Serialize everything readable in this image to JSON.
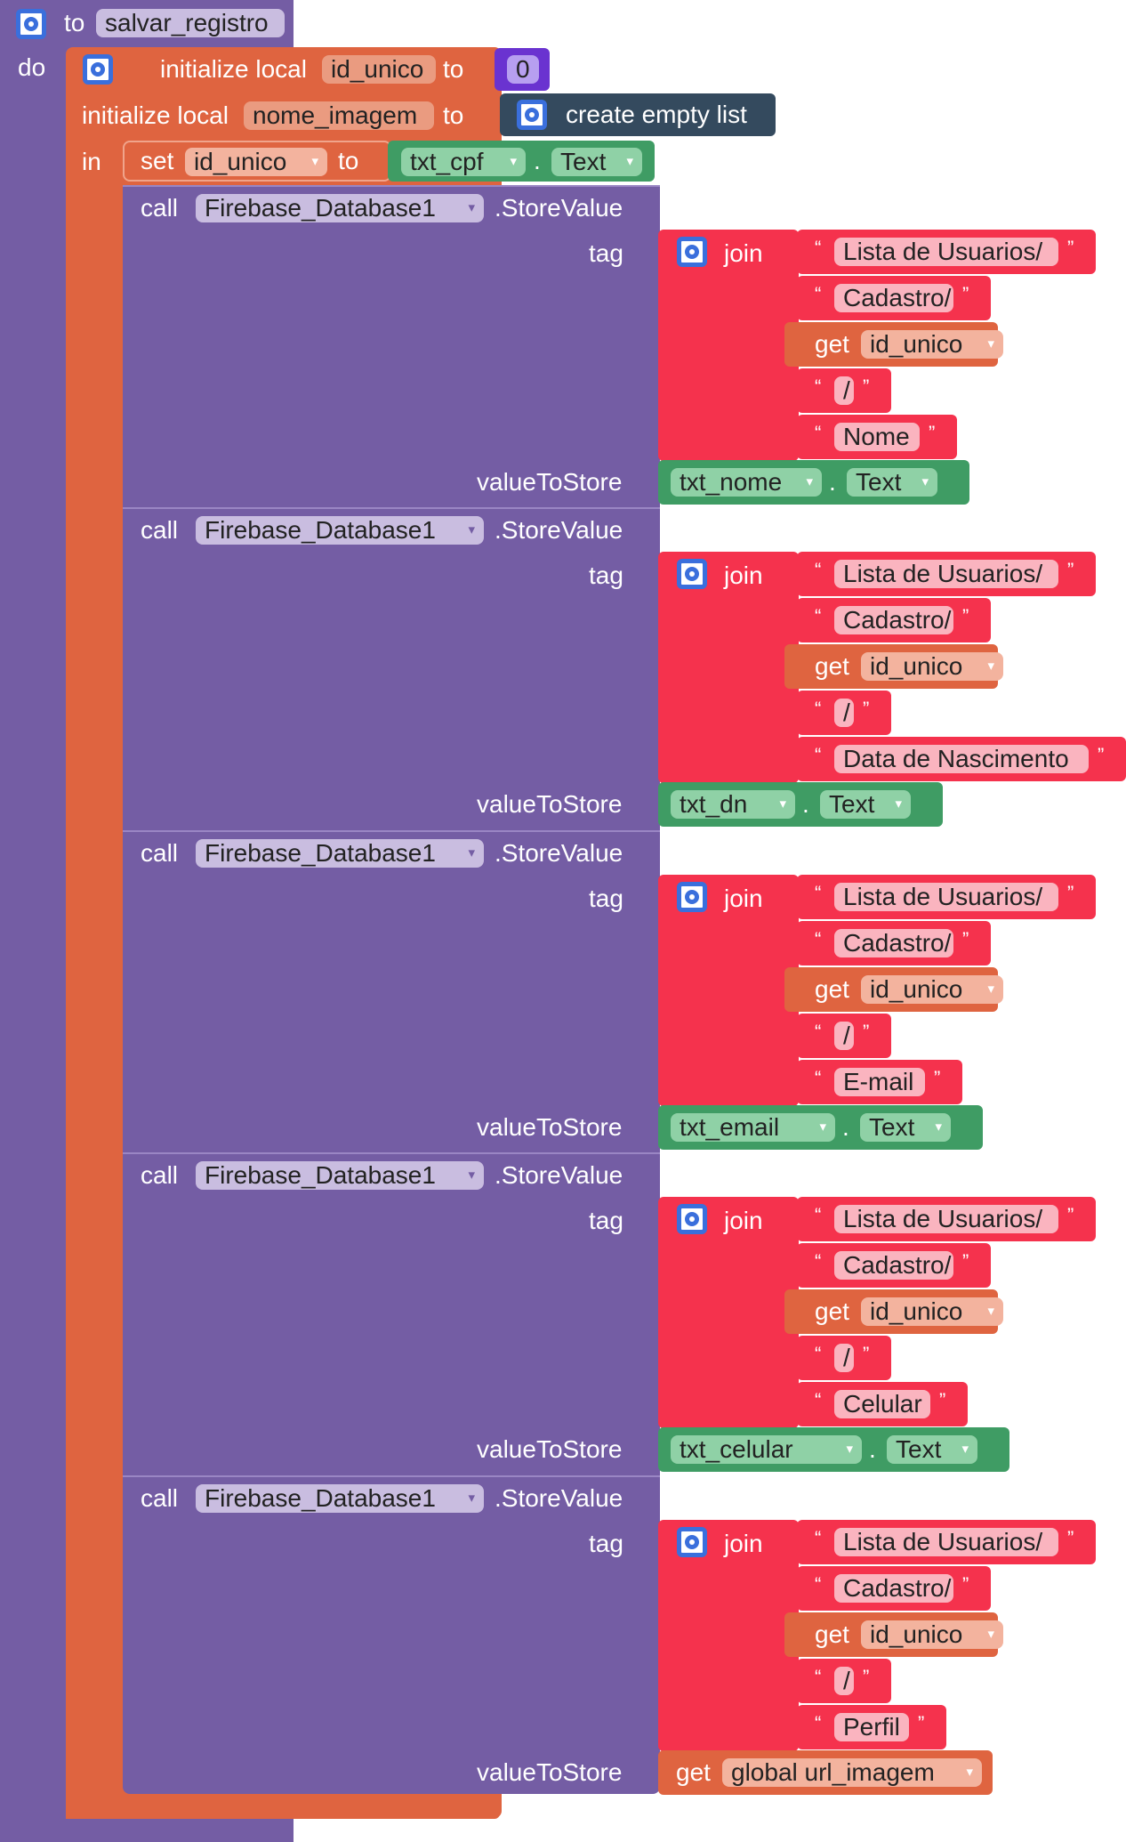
{
  "procedure": {
    "keyword_to": "to",
    "name": "salvar_registro",
    "keyword_do": "do"
  },
  "locals": {
    "init_label": "initialize local",
    "to_label": "to",
    "in_label": "in",
    "var1": "id_unico",
    "var1_value": "0",
    "var2": "nome_imagem",
    "var2_value": "create empty list"
  },
  "set_block": {
    "set_label": "set",
    "variable": "id_unico",
    "to_label": "to",
    "component": "txt_cpf",
    "dot": ".",
    "property": "Text"
  },
  "calls": [
    {
      "call_label": "call",
      "component": "Firebase_Database1",
      "method": ".StoreValue",
      "tag_label": "tag",
      "join_label": "join",
      "parts": [
        "Lista de Usuarios/",
        "Cadastro/",
        "id_unico",
        "/",
        "Nome"
      ],
      "get_label": "get",
      "value_label": "valueToStore",
      "value_component": "txt_nome",
      "value_property": "Text"
    },
    {
      "call_label": "call",
      "component": "Firebase_Database1",
      "method": ".StoreValue",
      "tag_label": "tag",
      "join_label": "join",
      "parts": [
        "Lista de Usuarios/",
        "Cadastro/",
        "id_unico",
        "/",
        "Data de Nascimento"
      ],
      "get_label": "get",
      "value_label": "valueToStore",
      "value_component": "txt_dn",
      "value_property": "Text"
    },
    {
      "call_label": "call",
      "component": "Firebase_Database1",
      "method": ".StoreValue",
      "tag_label": "tag",
      "join_label": "join",
      "parts": [
        "Lista de Usuarios/",
        "Cadastro/",
        "id_unico",
        "/",
        "E-mail"
      ],
      "get_label": "get",
      "value_label": "valueToStore",
      "value_component": "txt_email",
      "value_property": "Text"
    },
    {
      "call_label": "call",
      "component": "Firebase_Database1",
      "method": ".StoreValue",
      "tag_label": "tag",
      "join_label": "join",
      "parts": [
        "Lista de Usuarios/",
        "Cadastro/",
        "id_unico",
        "/",
        "Celular"
      ],
      "get_label": "get",
      "value_label": "valueToStore",
      "value_component": "txt_celular",
      "value_property": "Text"
    },
    {
      "call_label": "call",
      "component": "Firebase_Database1",
      "method": ".StoreValue",
      "tag_label": "tag",
      "join_label": "join",
      "parts": [
        "Lista de Usuarios/",
        "Cadastro/",
        "id_unico",
        "/",
        "Perfil"
      ],
      "get_label": "get",
      "value_label": "valueToStore",
      "value_get_label": "get",
      "value_global": "global url_imagem"
    }
  ],
  "symbols": {
    "open_quote": "“",
    "close_quote": "”",
    "dropdown": "▾"
  }
}
